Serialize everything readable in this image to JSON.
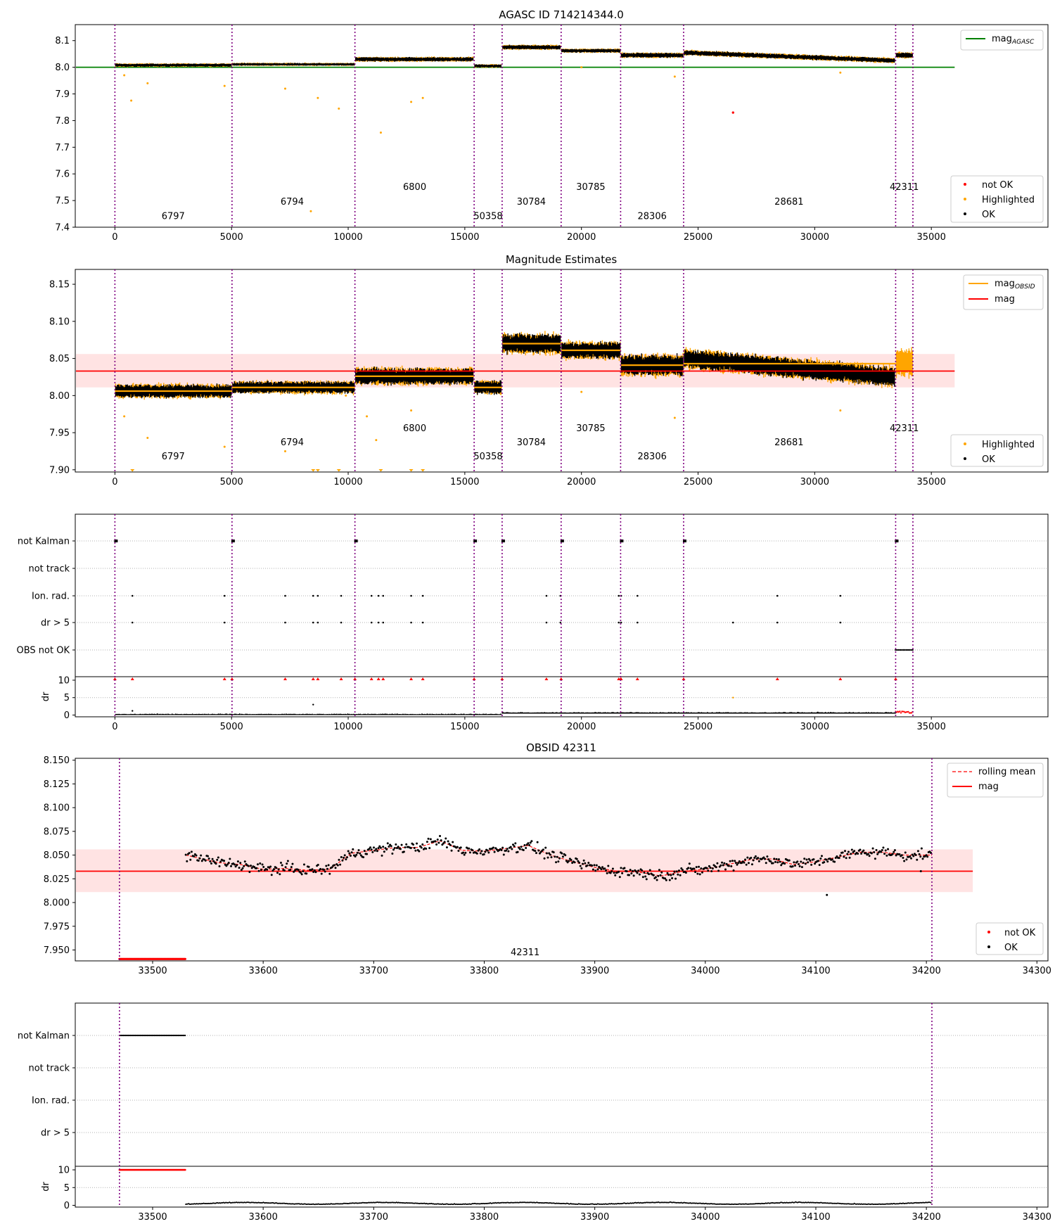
{
  "chart_data": [
    {
      "id": "p1",
      "type": "scatter",
      "title": "AGASC ID 714214344.0",
      "xlabel": "",
      "ylabel": "",
      "xlim": [
        -1700,
        40000
      ],
      "ylim": [
        7.4,
        8.16
      ],
      "xticks": [
        0,
        5000,
        10000,
        15000,
        20000,
        25000,
        30000,
        35000
      ],
      "yticks": [
        7.4,
        7.5,
        7.6,
        7.7,
        7.8,
        7.9,
        8.0,
        8.1
      ],
      "grid": false,
      "obsid_boundaries": [
        0,
        5020,
        10290,
        15400,
        16600,
        19130,
        21680,
        24380,
        33470,
        34210
      ],
      "obsid_labels": [
        {
          "text": "6797",
          "x": 2500,
          "y": 7.43
        },
        {
          "text": "6794",
          "x": 7600,
          "y": 7.485
        },
        {
          "text": "6800",
          "x": 12850,
          "y": 7.54
        },
        {
          "text": "50358",
          "x": 16000,
          "y": 7.43
        },
        {
          "text": "30784",
          "x": 17850,
          "y": 7.485
        },
        {
          "text": "30785",
          "x": 20400,
          "y": 7.54
        },
        {
          "text": "28306",
          "x": 23030,
          "y": 7.43
        },
        {
          "text": "28681",
          "x": 28900,
          "y": 7.485
        },
        {
          "text": "42311",
          "x": 33840,
          "y": 7.54
        }
      ],
      "segments": [
        {
          "x0": 0,
          "x1": 5020,
          "mean": 8.008
        },
        {
          "x0": 5020,
          "x1": 10290,
          "mean": 8.011
        },
        {
          "x0": 10290,
          "x1": 15400,
          "mean": 8.03
        },
        {
          "x0": 15400,
          "x1": 16600,
          "mean": 8.005
        },
        {
          "x0": 16600,
          "x1": 19130,
          "mean": 8.075
        },
        {
          "x0": 19130,
          "x1": 21680,
          "mean": 8.062
        },
        {
          "x0": 21680,
          "x1": 24380,
          "mean": 8.045
        },
        {
          "x0": 24380,
          "x1": 33470,
          "mean": 8.055,
          "slope_end": 8.025
        },
        {
          "x0": 33470,
          "x1": 34210,
          "mean": 8.045
        }
      ],
      "highlighted_outliers": [
        {
          "x": 700,
          "y": 7.875
        },
        {
          "x": 400,
          "y": 7.97
        },
        {
          "x": 1400,
          "y": 7.94
        },
        {
          "x": 4700,
          "y": 7.93
        },
        {
          "x": 7300,
          "y": 7.92
        },
        {
          "x": 8400,
          "y": 7.46
        },
        {
          "x": 8700,
          "y": 7.885
        },
        {
          "x": 9600,
          "y": 7.845
        },
        {
          "x": 11400,
          "y": 7.755
        },
        {
          "x": 12700,
          "y": 7.87
        },
        {
          "x": 13200,
          "y": 7.885
        },
        {
          "x": 24000,
          "y": 7.965
        },
        {
          "x": 31100,
          "y": 7.98
        },
        {
          "x": 20000,
          "y": 8.0
        }
      ],
      "not_ok_points": [
        {
          "x": 26500,
          "y": 7.83
        }
      ],
      "reference_line": {
        "name": "AGASC",
        "y": 8.0,
        "color": "#008000",
        "x1": 36000
      },
      "legend_top": [
        {
          "label": "mag",
          "sub": "AGASC",
          "color": "#008000",
          "kind": "line"
        }
      ],
      "legend_bottom": [
        {
          "label": "not OK",
          "color": "#ff0000",
          "kind": "dot"
        },
        {
          "label": "Highlighted",
          "color": "#ffa500",
          "kind": "dot"
        },
        {
          "label": "OK",
          "color": "#000000",
          "kind": "dot"
        }
      ]
    },
    {
      "id": "p2",
      "type": "scatter",
      "title": "Magnitude Estimates",
      "xlabel": "",
      "ylabel": "",
      "xlim": [
        -1700,
        40000
      ],
      "ylim": [
        7.897,
        8.17
      ],
      "xticks": [
        0,
        5000,
        10000,
        15000,
        20000,
        25000,
        30000,
        35000
      ],
      "yticks": [
        7.9,
        7.95,
        8.0,
        8.05,
        8.1,
        8.15
      ],
      "grid": false,
      "obsid_boundaries": [
        0,
        5020,
        10290,
        15400,
        16600,
        19130,
        21680,
        24380,
        33470,
        34210
      ],
      "obsid_labels": [
        {
          "text": "6797",
          "x": 2500,
          "y": 7.914
        },
        {
          "text": "6794",
          "x": 7600,
          "y": 7.933
        },
        {
          "text": "6800",
          "x": 12850,
          "y": 7.952
        },
        {
          "text": "50358",
          "x": 16000,
          "y": 7.914
        },
        {
          "text": "30784",
          "x": 17850,
          "y": 7.933
        },
        {
          "text": "30785",
          "x": 20400,
          "y": 7.952
        },
        {
          "text": "28306",
          "x": 23030,
          "y": 7.914
        },
        {
          "text": "28681",
          "x": 28900,
          "y": 7.933
        },
        {
          "text": "42311",
          "x": 33840,
          "y": 7.952
        }
      ],
      "segments": [
        {
          "x0": 0,
          "x1": 5020,
          "mean": 8.006
        },
        {
          "x0": 5020,
          "x1": 10290,
          "mean": 8.011
        },
        {
          "x0": 10290,
          "x1": 15400,
          "mean": 8.026
        },
        {
          "x0": 15400,
          "x1": 16600,
          "mean": 8.011
        },
        {
          "x0": 16600,
          "x1": 19130,
          "mean": 8.07
        },
        {
          "x0": 19130,
          "x1": 21680,
          "mean": 8.061
        },
        {
          "x0": 21680,
          "x1": 24380,
          "mean": 8.041
        },
        {
          "x0": 24380,
          "x1": 33470,
          "mean": 8.05,
          "slope_end": 8.025
        },
        {
          "x0": 33470,
          "x1": 34210,
          "mean": 8.045
        }
      ],
      "obsid_means": [
        {
          "x0": 0,
          "x1": 5020,
          "y": 8.006
        },
        {
          "x0": 5020,
          "x1": 10290,
          "y": 8.011
        },
        {
          "x0": 10290,
          "x1": 15400,
          "y": 8.026
        },
        {
          "x0": 15400,
          "x1": 16600,
          "y": 8.011
        },
        {
          "x0": 16600,
          "x1": 19130,
          "y": 8.07
        },
        {
          "x0": 19130,
          "x1": 21680,
          "y": 8.061
        },
        {
          "x0": 21680,
          "x1": 24380,
          "y": 8.041
        },
        {
          "x0": 24380,
          "x1": 33470,
          "y": 8.043
        }
      ],
      "highlighted_outliers": [
        {
          "x": 400,
          "y": 7.972
        },
        {
          "x": 1400,
          "y": 7.943
        },
        {
          "x": 4700,
          "y": 7.931
        },
        {
          "x": 7300,
          "y": 7.925
        },
        {
          "x": 10800,
          "y": 7.972
        },
        {
          "x": 12700,
          "y": 7.98
        },
        {
          "x": 20000,
          "y": 8.005
        },
        {
          "x": 24000,
          "y": 7.97
        },
        {
          "x": 31100,
          "y": 7.98
        },
        {
          "x": 11200,
          "y": 7.94
        },
        {
          "x": 9900,
          "y": 8.0
        }
      ],
      "clipped_markers": [
        {
          "x": 750
        },
        {
          "x": 8500
        },
        {
          "x": 8700
        },
        {
          "x": 9600
        },
        {
          "x": 11400
        },
        {
          "x": 12700
        },
        {
          "x": 13200
        }
      ],
      "mag_line": {
        "y": 8.033,
        "band": [
          8.011,
          8.056
        ],
        "x1": 36000
      },
      "legend_top": [
        {
          "label": "mag",
          "sub": "OBSID",
          "color": "#ffa500",
          "kind": "line"
        },
        {
          "label": "mag",
          "sub": "",
          "color": "#ff0000",
          "kind": "line"
        }
      ],
      "legend_bottom": [
        {
          "label": "Highlighted",
          "color": "#ffa500",
          "kind": "dot"
        },
        {
          "label": "OK",
          "color": "#000000",
          "kind": "dot"
        }
      ]
    },
    {
      "id": "p3",
      "type": "scatter",
      "title": "",
      "xlim": [
        -1700,
        40000
      ],
      "xticks": [
        0,
        5000,
        10000,
        15000,
        20000,
        25000,
        30000,
        35000
      ],
      "flag_rows": [
        "not Kalman",
        "not track",
        "Ion. rad.",
        "dr > 5",
        "OBS not OK"
      ],
      "obsid_boundaries": [
        0,
        5020,
        10290,
        15400,
        16600,
        19130,
        21680,
        24380,
        33470,
        34210
      ],
      "flag_points": {
        "not Kalman": [
          0,
          5020,
          10290,
          15400,
          16600,
          19130,
          21680,
          24380,
          33470
        ],
        "not track": [],
        "Ion. rad.": [
          750,
          4700,
          7300,
          8500,
          8700,
          9700,
          11000,
          11300,
          11500,
          12700,
          13200,
          18500,
          19100,
          21600,
          21700,
          22400,
          28400,
          31100
        ],
        "dr > 5": [
          750,
          4700,
          7300,
          8500,
          8700,
          9700,
          11000,
          11300,
          11500,
          12700,
          13200,
          18500,
          19100,
          21600,
          21700,
          22400,
          26500,
          28400,
          31100
        ],
        "OBS not OK": []
      },
      "obs_not_ok_range": [
        33470,
        34210
      ],
      "dr_ylabel": "dr",
      "dr_yticks": [
        0,
        5,
        10
      ],
      "dr_ylim": [
        -0.5,
        11
      ],
      "dr_spikes": [
        {
          "x": 26500,
          "y": 5
        },
        {
          "x": 8500,
          "y": 3
        },
        {
          "x": 750,
          "y": 1.2
        }
      ]
    },
    {
      "id": "p4",
      "type": "scatter",
      "title": "OBSID 42311",
      "xlim": [
        33430,
        34310
      ],
      "ylim": [
        7.9385,
        8.152
      ],
      "xticks": [
        33500,
        33600,
        33700,
        33800,
        33900,
        34000,
        34100,
        34200,
        34300
      ],
      "yticks": [
        7.95,
        7.975,
        8.0,
        8.025,
        8.05,
        8.075,
        8.1,
        8.125,
        8.15
      ],
      "obsid_boundaries": [
        33470,
        34205
      ],
      "obsid_label": {
        "text": "42311",
        "x": 33837,
        "y": 7.9445
      },
      "not_ok_range": [
        33470,
        33530
      ],
      "not_ok_y": 7.9405,
      "ok_range": [
        33530,
        34205
      ],
      "mag_line": {
        "y": 8.033,
        "band": [
          8.011,
          8.056
        ],
        "x1": 34242
      },
      "rolling_mean": [
        {
          "x": 33530,
          "y": 8.05
        },
        {
          "x": 33560,
          "y": 8.042
        },
        {
          "x": 33580,
          "y": 8.04
        },
        {
          "x": 33600,
          "y": 8.035
        },
        {
          "x": 33620,
          "y": 8.036
        },
        {
          "x": 33640,
          "y": 8.034
        },
        {
          "x": 33660,
          "y": 8.035
        },
        {
          "x": 33680,
          "y": 8.052
        },
        {
          "x": 33700,
          "y": 8.055
        },
        {
          "x": 33720,
          "y": 8.058
        },
        {
          "x": 33740,
          "y": 8.058
        },
        {
          "x": 33760,
          "y": 8.065
        },
        {
          "x": 33780,
          "y": 8.055
        },
        {
          "x": 33800,
          "y": 8.054
        },
        {
          "x": 33820,
          "y": 8.057
        },
        {
          "x": 33840,
          "y": 8.06
        },
        {
          "x": 33860,
          "y": 8.05
        },
        {
          "x": 33880,
          "y": 8.043
        },
        {
          "x": 33900,
          "y": 8.037
        },
        {
          "x": 33920,
          "y": 8.033
        },
        {
          "x": 33940,
          "y": 8.032
        },
        {
          "x": 33960,
          "y": 8.028
        },
        {
          "x": 33980,
          "y": 8.033
        },
        {
          "x": 34000,
          "y": 8.035
        },
        {
          "x": 34020,
          "y": 8.04
        },
        {
          "x": 34040,
          "y": 8.045
        },
        {
          "x": 34060,
          "y": 8.046
        },
        {
          "x": 34080,
          "y": 8.04
        },
        {
          "x": 34100,
          "y": 8.043
        },
        {
          "x": 34120,
          "y": 8.048
        },
        {
          "x": 34140,
          "y": 8.053
        },
        {
          "x": 34160,
          "y": 8.053
        },
        {
          "x": 34180,
          "y": 8.05
        },
        {
          "x": 34205,
          "y": 8.05
        }
      ],
      "isolated_points": [
        {
          "x": 34110,
          "y": 8.008
        },
        {
          "x": 34195,
          "y": 8.033
        }
      ],
      "legend_top": [
        {
          "label": "rolling mean",
          "color": "#ff0000",
          "kind": "dash"
        },
        {
          "label": "mag",
          "color": "#ff0000",
          "kind": "line"
        }
      ],
      "legend_bottom": [
        {
          "label": "not OK",
          "color": "#ff0000",
          "kind": "dot"
        },
        {
          "label": "OK",
          "color": "#000000",
          "kind": "dot"
        }
      ]
    },
    {
      "id": "p5",
      "type": "scatter",
      "title": "",
      "xlim": [
        33430,
        34310
      ],
      "xticks": [
        33500,
        33600,
        33700,
        33800,
        33900,
        34000,
        34100,
        34200,
        34300
      ],
      "flag_rows": [
        "not Kalman",
        "not track",
        "Ion. rad.",
        "dr > 5"
      ],
      "obsid_boundaries": [
        33470,
        34205
      ],
      "not_kalman_range": [
        33470,
        33530
      ],
      "dr_ylabel": "dr",
      "dr_yticks": [
        0,
        5,
        10
      ],
      "dr_ylim": [
        -0.5,
        11
      ],
      "dr_not_ok_range": [
        33470,
        33530
      ],
      "dr_ok_range": [
        33530,
        34205
      ]
    }
  ]
}
